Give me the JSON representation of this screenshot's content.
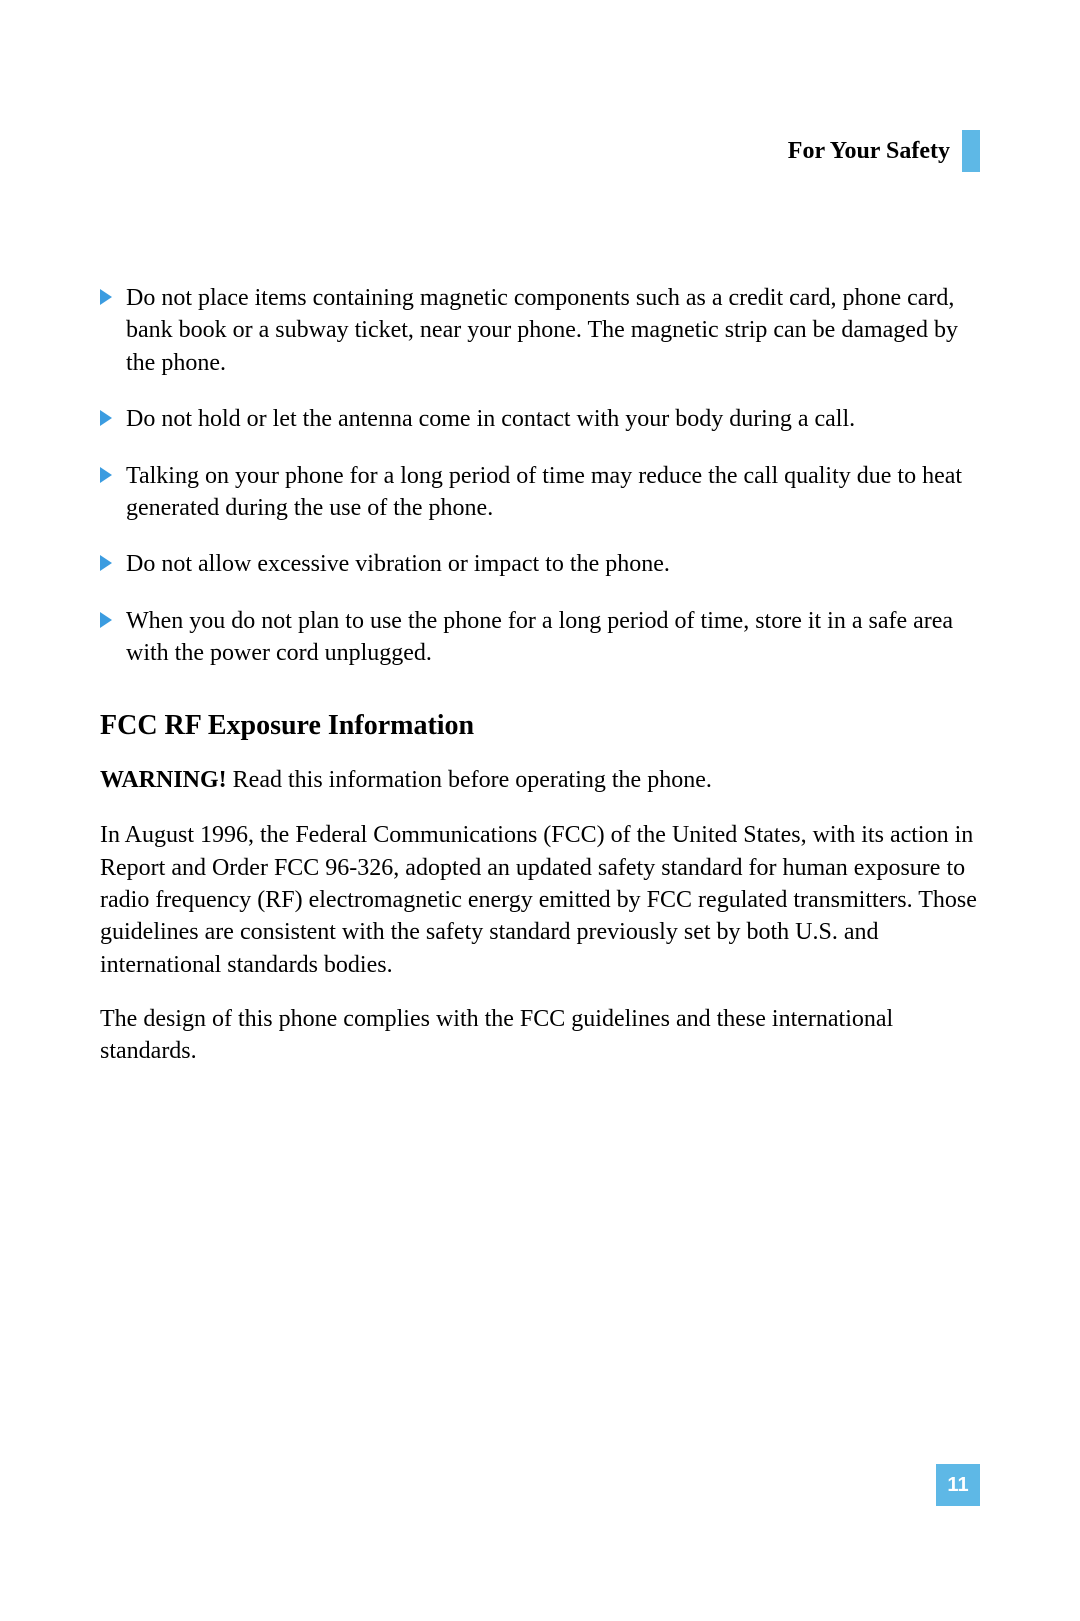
{
  "header": {
    "title": "For Your Safety",
    "tab_color": "#5eb8e6"
  },
  "bullets": [
    "Do not place items containing magnetic components such as a credit card, phone card, bank book or a subway ticket, near your phone. The magnetic strip can be damaged by the phone.",
    "Do not hold or let the antenna come in contact with your body during a call.",
    "Talking on your phone for a long period of time may reduce the call quality due to heat generated during the use of the phone.",
    "Do not allow excessive vibration or impact to the phone.",
    "When you do not plan to use the phone for a long period of time, store it in a safe area with the power cord unplugged."
  ],
  "section": {
    "heading": "FCC RF Exposure Information",
    "warning_label": "WARNING!",
    "warning_text": " Read this information before operating the phone.",
    "paragraphs": [
      "In August 1996, the Federal Communications (FCC) of the United States, with its action in Report and Order FCC 96-326, adopted an updated safety standard for human exposure to radio frequency (RF) electromagnetic energy emitted by FCC regulated transmitters. Those guidelines are consistent with the safety standard previously set by both U.S. and international standards bodies.",
      "The design of this phone complies with the FCC guidelines and these international standards."
    ]
  },
  "page_number": "11",
  "colors": {
    "bullet_marker": "#3b9ce0",
    "accent": "#5eb8e6",
    "page_number_text": "#ffffff",
    "background": "#ffffff",
    "text": "#000000"
  },
  "typography": {
    "body_fontsize": 24,
    "heading_fontsize": 28,
    "header_title_fontsize": 24,
    "page_number_fontsize": 20
  }
}
